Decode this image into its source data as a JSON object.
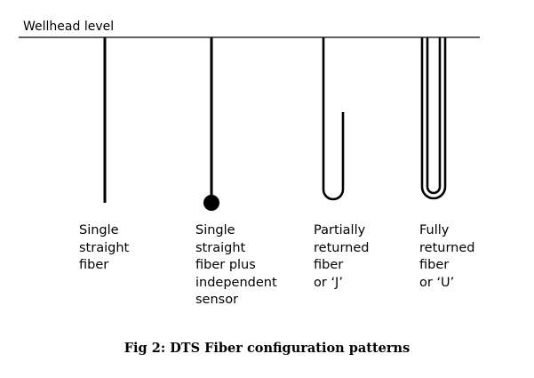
{
  "wellhead": {
    "label": "Wellhead level"
  },
  "configurations": [
    {
      "id": "single-straight",
      "lines": [
        "Single",
        "straight",
        "fiber"
      ]
    },
    {
      "id": "single-straight-sensor",
      "lines": [
        "Single",
        "straight",
        "fiber plus",
        "independent",
        "sensor"
      ]
    },
    {
      "id": "partially-returned",
      "lines": [
        "Partially",
        "returned",
        "fiber",
        "or ‘J’"
      ]
    },
    {
      "id": "fully-returned",
      "lines": [
        "Fully",
        "returned",
        "fiber",
        "or ‘U’"
      ]
    }
  ],
  "caption": "Fig 2: DTS Fiber configuration patterns",
  "colors": {
    "ink": "#000000",
    "background": "#ffffff"
  }
}
